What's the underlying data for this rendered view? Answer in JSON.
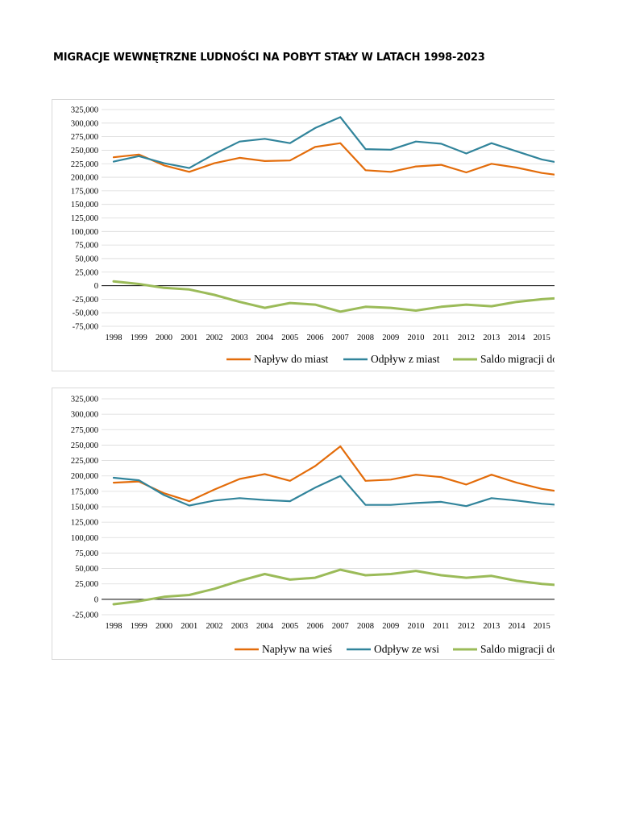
{
  "page": {
    "title": "MIGRACJE WEWNĘTRZNE LUDNOŚCI NA POBYT STAŁY W LATACH 1998-2023"
  },
  "colors": {
    "orange": "#E36C0A",
    "teal": "#31849B",
    "green": "#9BBB59",
    "grid": "#d9d9d9"
  },
  "chart_data": [
    {
      "type": "line",
      "title": "",
      "xlabel": "",
      "ylabel": "",
      "categories": [
        "1998",
        "1999",
        "2000",
        "2001",
        "2002",
        "2003",
        "2004",
        "2005",
        "2006",
        "2007",
        "2008",
        "2009",
        "2010",
        "2011",
        "2012",
        "2013",
        "2014",
        "2015"
      ],
      "ylim": [
        -75000,
        325000
      ],
      "ytick_step": 25000,
      "yticks": [
        "325,000",
        "300,000",
        "275,000",
        "250,000",
        "225,000",
        "200,000",
        "175,000",
        "150,000",
        "125,000",
        "100,000",
        "75,000",
        "50,000",
        "25,000",
        "0",
        "-25,000",
        "-50,000",
        "-75,000"
      ],
      "grid": true,
      "legend_position": "bottom",
      "series": [
        {
          "name": "Napływ do miast",
          "color": "#E36C0A",
          "values": [
            237000,
            242000,
            222000,
            210000,
            226000,
            236000,
            230000,
            231000,
            256000,
            263000,
            213000,
            210000,
            220000,
            223000,
            209000,
            225000,
            218000,
            208000
          ]
        },
        {
          "name": "Odpływ z miast",
          "color": "#31849B",
          "values": [
            229000,
            239000,
            226000,
            217000,
            243000,
            266000,
            271000,
            263000,
            291000,
            311000,
            252000,
            251000,
            266000,
            262000,
            244000,
            263000,
            248000,
            233000
          ]
        },
        {
          "name": "Saldo migracji do miast",
          "color": "#9BBB59",
          "values": [
            8000,
            3000,
            -4000,
            -7000,
            -17000,
            -30000,
            -41000,
            -32000,
            -35000,
            -48000,
            -39000,
            -41000,
            -46000,
            -39000,
            -35000,
            -38000,
            -30000,
            -25000
          ]
        }
      ]
    },
    {
      "type": "line",
      "title": "",
      "xlabel": "",
      "ylabel": "",
      "categories": [
        "1998",
        "1999",
        "2000",
        "2001",
        "2002",
        "2003",
        "2004",
        "2005",
        "2006",
        "2007",
        "2008",
        "2009",
        "2010",
        "2011",
        "2012",
        "2013",
        "2014",
        "2015"
      ],
      "ylim": [
        -25000,
        325000
      ],
      "ytick_step": 25000,
      "yticks": [
        "325,000",
        "300,000",
        "275,000",
        "250,000",
        "225,000",
        "200,000",
        "175,000",
        "150,000",
        "125,000",
        "100,000",
        "75,000",
        "50,000",
        "25,000",
        "0",
        "-25,000"
      ],
      "grid": true,
      "legend_position": "bottom",
      "series": [
        {
          "name": "Napływ na wieś",
          "color": "#E36C0A",
          "values": [
            189000,
            191000,
            172000,
            159000,
            178000,
            195000,
            203000,
            192000,
            216000,
            248000,
            192000,
            194000,
            202000,
            198000,
            186000,
            202000,
            189000,
            179000
          ]
        },
        {
          "name": "Odpływ ze wsi",
          "color": "#31849B",
          "values": [
            197000,
            193000,
            169000,
            152000,
            160000,
            164000,
            161000,
            159000,
            181000,
            200000,
            153000,
            153000,
            156000,
            158000,
            151000,
            164000,
            160000,
            155000
          ]
        },
        {
          "name": "Saldo migracji do wsi",
          "color": "#9BBB59",
          "values": [
            -8000,
            -3000,
            4000,
            7000,
            17000,
            30000,
            41000,
            32000,
            35000,
            48000,
            39000,
            41000,
            46000,
            39000,
            35000,
            38000,
            30000,
            25000
          ]
        }
      ]
    }
  ]
}
